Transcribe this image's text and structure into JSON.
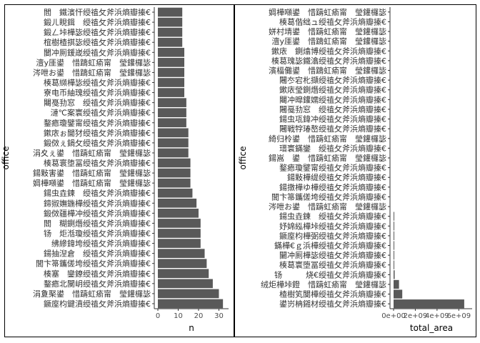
{
  "chart_data": [
    {
      "type": "bar",
      "orientation": "horizontal",
      "xlabel": "n",
      "ylabel": "office",
      "xticks": [
        "0",
        "10",
        "20",
        "30"
      ],
      "xlim": [
        0,
        33
      ],
      "categories": [
        "閻　鐵濱忓绶禃攵斧浜熵瓣搸€",
        "鍛ㄦ睍鍓　绶禃攵斧浜熵瓣搸€",
        "鍛ㄥ垰樺毖绶禃攵斧浜熵瓣搸€",
        "椬樹楂掑毖绶禃攵斧浜熵瓣搸€",
        "闄冲厠鍰嵅绶禃攵斧浜熵瓣搸€",
        "澶у厓鍙　惜躊虹瘉甯　瑩鑵欏毖",
        "涔呭お鍙　惜躊虹瘉甯　瑩鑵欏毖",
        "楱葛纐樺毖绶禃攵斧浜熵瓣搸€",
        "寮电币紬瑰绶禃攵斧浜熵瓣搸€",
        "闀戞劧窓　绶禃攵斧浜熵瓣搸€",
        "漣℃案寰绶禃攵斧浜熵瓣搸€",
        "鍪瘱瓊鐾甯绶禃攵斧浜熵瓣搸€",
        "鏉庡ぉ閫犲绶禃攵斧浜熵瓣搸€",
        "鍛傚ぇ鍋攵绶禃攵斧浜熵瓣搸€",
        "涓夊ぇ鍙　惜躊虹瘉甯　瑩鑵欏毖",
        "楱葛寰堕冨绶禃攵斧浜熵瓣搸€",
        "鍚敤害鍙　惜躊虹瘉甯　瑩鑵欏毖",
        "婤樺噸鍙　惜躊虹瘉甯　瑩鑵欏毖",
        "鍚虫垚鍊　绶禃攵斧浜熵瓣搸€",
        "鍗掓嫵鍦樺绶禃攵斧浜熵瓣搸€",
        "鍛傚疆樺冲绶禃攵斧浜熵瓣搸€",
        "閻　糊鍘熸绶禃攵斧浜熵瓣搸€",
        "钖　炬湉瓊绶禃攵斧浜熵瓣搸€",
        "绋縿鍏垮绶禃攵斧浜熵瓣搸€",
        "鍚抽湼倉　绶禃攵斧浜熵瓣搸€",
        "閭卞箒鑴傞垮绶禃攵斧浜熵瓣搸€",
        "楱塞　鑾鐐绶禃攵斧浜熵瓣搸€",
        "鍪瘱北闃岄绶禃攵斧浜熵瓣搸€",
        "涓夐棸鍙　惜躊虹瘉甯　瑩鑵欏毖",
        "鐝庢枃鍵濆绶禃攵斧浜熵瓣搸€"
      ],
      "values": [
        12,
        12,
        12,
        12,
        13,
        13,
        13,
        13,
        13,
        14,
        14,
        14,
        15,
        15,
        15,
        16,
        16,
        16,
        17,
        19,
        20,
        21,
        21,
        21,
        23,
        24,
        25,
        27,
        30,
        32
      ],
      "bar_color": "#595959"
    },
    {
      "type": "bar",
      "orientation": "horizontal",
      "xlabel": "total_area",
      "ylabel": "office",
      "xticks": [
        "0e+00",
        "2e+09",
        "4e+09",
        "6e+09"
      ],
      "xlim": [
        0,
        6900000000
      ],
      "categories": [
        "婤樺噸鍙　惜躊虹瘉甯　瑩鑵欏毖",
        "楱葛偕绌ュ绶禃攵斧浜熵瓣搸€",
        "姘村埥鍙　惜躊虹瘉甯　瑩鑵欏毖",
        "澶у厓鍙　惜躊虹瘉甯　瑩鑵欏毖",
        "鏉庡　鍘熻博绶禃攵斧浜熵瓣搸€",
        "楱葛瑰毖鐵潝绶禃攵斧浜熵瓣搸€",
        "濱楅儺鍙　惜躊虹瘉甯　瑩鑵欏毖",
        "闀冭宕朼擷绶禃攵斧浜熵瓣搸€",
        "鏉庡瑩鍘熸绶禃攵斧浜熵瓣搸€",
        "闀冲暭鑵嬬绶禃攵斧浜熵瓣搸€",
        "闀戞劧窓　绶禃攵斧浜熵瓣搸€",
        "鍚虫瓨鍏冲绶禃攵斧浜熵瓣搸€",
        "闀戦牸瑃嶅绶禃攵斧浜熵瓣搸€",
        "綺归柃鍙　惜躊虹瘉甯　瑩鑵欏毖",
        "瑨寰鏋鑾　绶禃攵斧浜熵瓣搸€",
        "鍚嵩　鍙　惜躊虹瘉甯　瑩鑵欏毖",
        "鍪瘱瓊鐾甯绶禃攵斧浜熵瓣搸€",
        "鍚敤樺缇绶禃攵斧浜熵瓣搸€",
        "鍚撴樺ゆ樺绶禃攵斧浜熵瓣搸€",
        "閭卞箒鑴傞垮绶禃攵斧浜熵瓣搸€",
        "涔呭お鍙　惜躊虹瘉甯　瑩鑵欏毖",
        "鍚虫垚鍊　绶禃攵斧浜熵瓣搸€",
        "妤婂紭樺垰绶禃攵斧浜熵瓣搸€",
        "鐝庢枃樺弼绶禃攵斧浜熵瓣搸€",
        "鏋樺€ｇ浜樺绶禃攵斧浜熵瓣搸€",
        "闄冲厠樺毖绶禃攵斧浜熵瓣搸€",
        "楱葛寰堕冨绶禃攵斧浜熵瓣搸€",
        "钖　　　烧€绶禃攵斧浜熵瓣搸€",
        "绒炬樺垰鐙　惜躊虹瘉甯　瑩鑵欏毖",
        "楂樹笂闃樺绶禃攵斧浜熵瓣搸€",
        "鍙岃柟鎺材绶禃攵斧浜熵瓣搸€"
      ],
      "values": [
        0,
        0,
        0,
        0,
        0,
        0,
        0,
        0,
        0,
        0,
        0,
        0,
        0,
        0,
        0,
        0,
        0,
        0,
        0,
        0,
        0,
        10000000,
        20000000,
        30000000,
        40000000,
        50000000,
        60000000,
        100000000,
        500000000,
        800000000,
        6500000000
      ],
      "bar_color": "#595959"
    }
  ]
}
